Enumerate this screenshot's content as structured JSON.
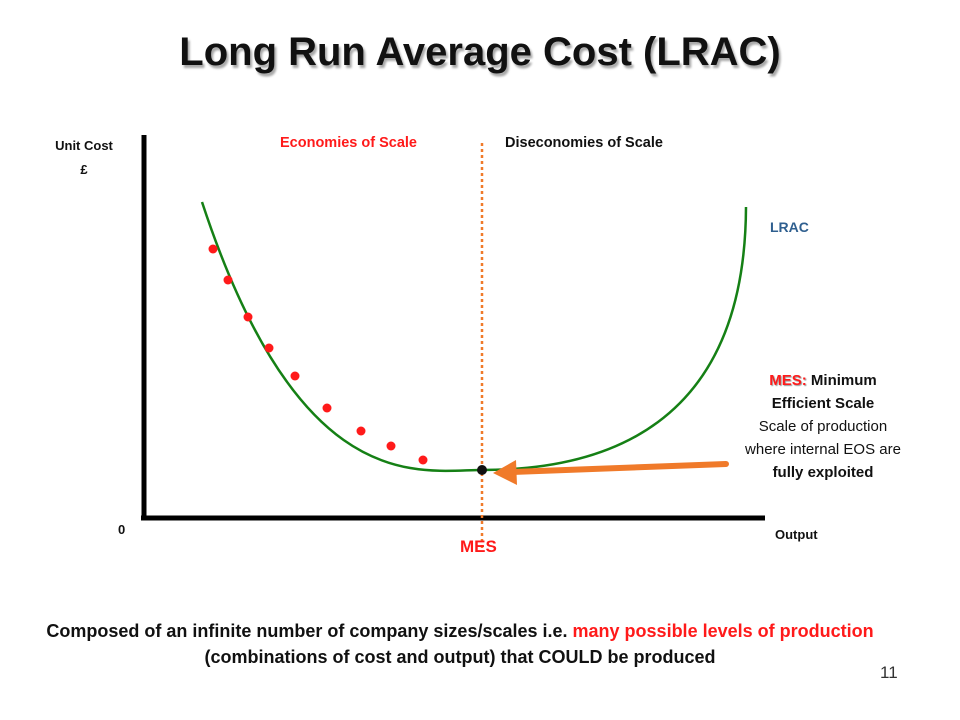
{
  "title": "Long Run Average Cost (LRAC)",
  "y_axis_label": [
    "Unit Cost",
    "£"
  ],
  "origin_label": "0",
  "x_axis_label": "Output",
  "region_left_label": "Economies of Scale",
  "region_right_label": "Diseconomies of Scale",
  "curve_label": "LRAC",
  "mes_axis_label": "MES",
  "mes_note": {
    "tag": "MES:",
    "line1": "Minimum",
    "line2": "Efficient Scale",
    "line3": "Scale of production",
    "line4": "where internal EOS are",
    "line5": "fully exploited"
  },
  "caption": {
    "part1": "Composed of an infinite number of company sizes/scales i.e. ",
    "part2_red": "many possible levels of production",
    "part3": " (combinations of cost and output) that COULD be produced"
  },
  "page_number": "11",
  "colors": {
    "curve": "#158015",
    "points": "#ff1a1a",
    "mes_point": "#111111",
    "divider": "#f07a2a",
    "arrow": "#f07a2a",
    "red_text": "#ff1a1a"
  }
}
